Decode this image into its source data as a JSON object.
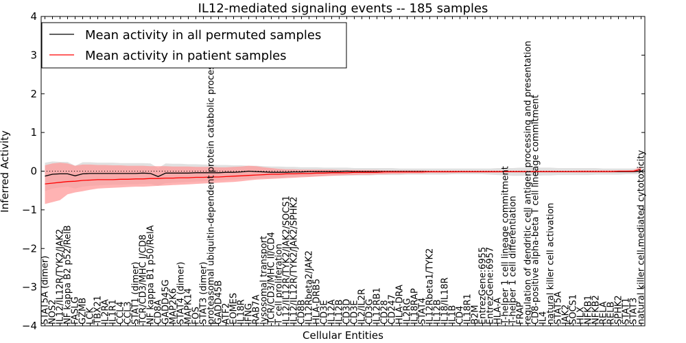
{
  "chart_data": {
    "type": "line",
    "title": "IL12-mediated signaling events -- 185 samples",
    "xlabel": "Cellular Entities",
    "ylabel": "Inferred Activity",
    "ylim": [
      -4,
      4
    ],
    "yticks": [
      -4,
      -3,
      -2,
      -1,
      0,
      1,
      2,
      3,
      4
    ],
    "legend_position": "top-left",
    "colors": {
      "permuted": "#000000",
      "patient": "#ff0000",
      "patient_band": "#ff9999",
      "permuted_band": "#cccccc"
    },
    "categories": [
      "STAT5A (dimer)",
      "NOS2",
      "IL12/IL12R/TYK2/JAK2",
      "NF kappa B2 p52/RelB",
      "FASLG",
      "GZMB",
      "LCK",
      "TBX21",
      "IL2RA",
      "IL1R1",
      "CCL4",
      "CCL3",
      "STAT1 (dimer)",
      "TCR/CD3/MHC I/CD8",
      "NF kappa B1 p50/RelA",
      "CD8A",
      "GADD45G",
      "MAP2K6",
      "STAT4 (dimer)",
      "MAPK14",
      "FOS",
      "STAT3 (dimer)",
      "proteasomal ubiquitin-dependent protein catabolic process",
      "GADD45B",
      "ATF2",
      "EOMES",
      "IL18R",
      "IFNG",
      "RAB7A",
      "lysosomal transport",
      "TCR/CD3/MHC II/CD4",
      "T cell proliferation",
      "IL12/IL12R/TYK2/JAK2/SOCS1",
      "IL12/IL12R/TYK2/JAK2/SPHK2",
      "CD8B",
      "IL12Rbeta2/JAK2",
      "HLA-DRB5",
      "CD3E",
      "IL12A",
      "IL12B",
      "CD3D",
      "CD3E",
      "IL2/IL2R",
      "CD3G",
      "IL12RB1",
      "CD28",
      "CD247",
      "HLA-DRA",
      "IL2RG",
      "IL18RAP",
      "STAT4",
      "IL12Rbeta1/TYK2",
      "IL12B",
      "IL18/IL18R",
      "IL1B",
      "CD4",
      "IL18R1",
      "B2M",
      "EntrezGene:6955",
      "EntrezGene:6957",
      "HLA-A",
      "T-helper 1 cell lineage commitment",
      "T-helper 1 cell differentiation",
      "FRAP",
      "regulation of dendritic cell antigen processing and presentation",
      "CD8-positive alpha-beta T cell lineage commitment",
      "IL4",
      "natural killer cell activation",
      "STAT5A",
      "JAK2",
      "SOCS1",
      "HLX",
      "NFKB1",
      "NFKB2",
      "RELA",
      "RELB",
      "SPHK2",
      "STAT1",
      "STAT3",
      "natural killer cell mediated cytotoxicity"
    ],
    "series": [
      {
        "name": "Mean activity in all permuted samples",
        "values": [
          -0.13,
          -0.08,
          -0.07,
          -0.07,
          -0.12,
          -0.07,
          -0.06,
          -0.06,
          -0.06,
          -0.06,
          -0.06,
          -0.06,
          -0.06,
          -0.05,
          -0.06,
          -0.14,
          -0.05,
          -0.05,
          -0.05,
          -0.05,
          -0.04,
          -0.04,
          -0.04,
          -0.04,
          -0.03,
          -0.03,
          -0.02,
          0.0,
          -0.01,
          -0.02,
          -0.03,
          -0.03,
          -0.03,
          -0.02,
          -0.02,
          -0.01,
          -0.01,
          -0.01,
          -0.01,
          -0.01,
          0.0,
          -0.01,
          -0.01,
          -0.01,
          -0.01,
          -0.01,
          -0.01,
          -0.01,
          -0.01,
          -0.01,
          -0.01,
          -0.01,
          -0.01,
          -0.01,
          -0.01,
          -0.01,
          -0.01,
          -0.01,
          -0.01,
          -0.01,
          -0.01,
          -0.01,
          -0.01,
          -0.01,
          -0.01,
          -0.01,
          -0.01,
          -0.01,
          -0.01,
          -0.01,
          -0.01,
          -0.01,
          -0.01,
          -0.01,
          -0.01,
          -0.01,
          -0.01,
          -0.01,
          -0.01,
          0.0
        ],
        "lower": [
          -0.52,
          -0.45,
          -0.42,
          -0.4,
          -0.45,
          -0.4,
          -0.38,
          -0.37,
          -0.36,
          -0.35,
          -0.35,
          -0.34,
          -0.34,
          -0.33,
          -0.33,
          -0.38,
          -0.31,
          -0.3,
          -0.29,
          -0.28,
          -0.27,
          -0.26,
          -0.25,
          -0.24,
          -0.23,
          -0.22,
          -0.21,
          -0.2,
          -0.19,
          -0.18,
          -0.18,
          -0.17,
          -0.16,
          -0.15,
          -0.14,
          -0.14,
          -0.13,
          -0.13,
          -0.12,
          -0.12,
          -0.12,
          -0.11,
          -0.11,
          -0.11,
          -0.1,
          -0.1,
          -0.1,
          -0.1,
          -0.09,
          -0.09,
          -0.09,
          -0.09,
          -0.09,
          -0.09,
          -0.08,
          -0.08,
          -0.08,
          -0.08,
          -0.08,
          -0.09,
          -0.1,
          -0.11,
          -0.12,
          -0.12,
          -0.12,
          -0.12,
          -0.11,
          -0.11,
          -0.1,
          -0.1,
          -0.1,
          -0.1,
          -0.1,
          -0.09,
          -0.09,
          -0.09,
          -0.09,
          -0.08,
          -0.08,
          -0.08
        ],
        "upper": [
          0.22,
          0.25,
          0.24,
          0.24,
          0.14,
          0.23,
          0.23,
          0.22,
          0.22,
          0.22,
          0.21,
          0.21,
          0.21,
          0.21,
          0.2,
          0.08,
          0.2,
          0.19,
          0.19,
          0.18,
          0.18,
          0.17,
          0.17,
          0.16,
          0.16,
          0.15,
          0.15,
          0.14,
          0.14,
          0.13,
          0.12,
          0.12,
          0.11,
          0.11,
          0.1,
          0.1,
          0.1,
          0.09,
          0.09,
          0.09,
          0.09,
          0.08,
          0.08,
          0.08,
          0.08,
          0.08,
          0.08,
          0.07,
          0.07,
          0.07,
          0.07,
          0.07,
          0.07,
          0.07,
          0.07,
          0.07,
          0.07,
          0.07,
          0.07,
          0.07,
          0.08,
          0.08,
          0.08,
          0.09,
          0.09,
          0.09,
          0.09,
          0.09,
          0.08,
          0.08,
          0.08,
          0.08,
          0.08,
          0.08,
          0.07,
          0.07,
          0.07,
          0.07,
          0.07,
          0.07
        ]
      },
      {
        "name": "Mean activity in patient samples",
        "values": [
          -0.33,
          -0.31,
          -0.29,
          -0.27,
          -0.26,
          -0.24,
          -0.23,
          -0.22,
          -0.22,
          -0.22,
          -0.21,
          -0.21,
          -0.2,
          -0.2,
          -0.19,
          -0.19,
          -0.18,
          -0.18,
          -0.17,
          -0.17,
          -0.16,
          -0.16,
          -0.15,
          -0.15,
          -0.14,
          -0.13,
          -0.12,
          -0.11,
          -0.1,
          -0.09,
          -0.08,
          -0.08,
          -0.07,
          -0.07,
          -0.06,
          -0.06,
          -0.05,
          -0.05,
          -0.04,
          -0.04,
          -0.04,
          -0.03,
          -0.03,
          -0.03,
          -0.03,
          -0.02,
          -0.02,
          -0.02,
          -0.02,
          -0.02,
          -0.02,
          -0.01,
          -0.01,
          -0.01,
          -0.01,
          -0.01,
          -0.01,
          -0.01,
          -0.01,
          -0.01,
          -0.01,
          -0.01,
          -0.01,
          -0.01,
          -0.01,
          -0.01,
          -0.01,
          -0.01,
          -0.01,
          -0.01,
          -0.01,
          -0.01,
          -0.01,
          -0.01,
          -0.01,
          -0.01,
          0.0,
          0.0,
          0.0,
          0.05
        ],
        "lower": [
          -0.85,
          -0.8,
          -0.75,
          -0.6,
          -0.55,
          -0.52,
          -0.48,
          -0.45,
          -0.44,
          -0.43,
          -0.42,
          -0.41,
          -0.4,
          -0.4,
          -0.39,
          -0.38,
          -0.37,
          -0.36,
          -0.35,
          -0.34,
          -0.33,
          -0.32,
          -0.31,
          -0.3,
          -0.29,
          -0.28,
          -0.26,
          -0.24,
          -0.22,
          -0.21,
          -0.2,
          -0.19,
          -0.18,
          -0.17,
          -0.16,
          -0.15,
          -0.14,
          -0.13,
          -0.12,
          -0.11,
          -0.1,
          -0.1,
          -0.09,
          -0.09,
          -0.08,
          -0.08,
          -0.07,
          -0.07,
          -0.06,
          -0.06,
          -0.06,
          -0.05,
          -0.05,
          -0.05,
          -0.05,
          -0.04,
          -0.04,
          -0.04,
          -0.04,
          -0.04,
          -0.04,
          -0.03,
          -0.03,
          -0.03,
          -0.03,
          -0.03,
          -0.03,
          -0.03,
          -0.03,
          -0.03,
          -0.03,
          -0.03,
          -0.03,
          -0.03,
          -0.03,
          -0.03,
          -0.03,
          -0.03,
          -0.03,
          -0.02
        ],
        "upper": [
          0.15,
          0.2,
          0.22,
          0.2,
          0.14,
          0.17,
          0.17,
          0.16,
          0.16,
          0.15,
          0.15,
          0.14,
          0.14,
          0.14,
          0.13,
          0.13,
          0.13,
          0.12,
          0.12,
          0.12,
          0.11,
          0.11,
          0.11,
          0.1,
          0.1,
          0.11,
          0.12,
          0.14,
          0.13,
          0.1,
          0.08,
          0.06,
          0.05,
          0.05,
          0.04,
          0.04,
          0.04,
          0.04,
          0.04,
          0.03,
          0.03,
          0.03,
          0.03,
          0.03,
          0.03,
          0.02,
          0.02,
          0.02,
          0.02,
          0.02,
          0.02,
          0.01,
          0.01,
          0.01,
          0.01,
          0.01,
          0.01,
          0.01,
          0.01,
          0.01,
          0.01,
          0.01,
          0.01,
          0.01,
          0.01,
          0.01,
          0.01,
          0.01,
          0.01,
          0.01,
          0.01,
          0.02,
          0.02,
          0.02,
          0.02,
          0.02,
          0.02,
          0.02,
          0.03,
          0.12
        ]
      }
    ]
  }
}
